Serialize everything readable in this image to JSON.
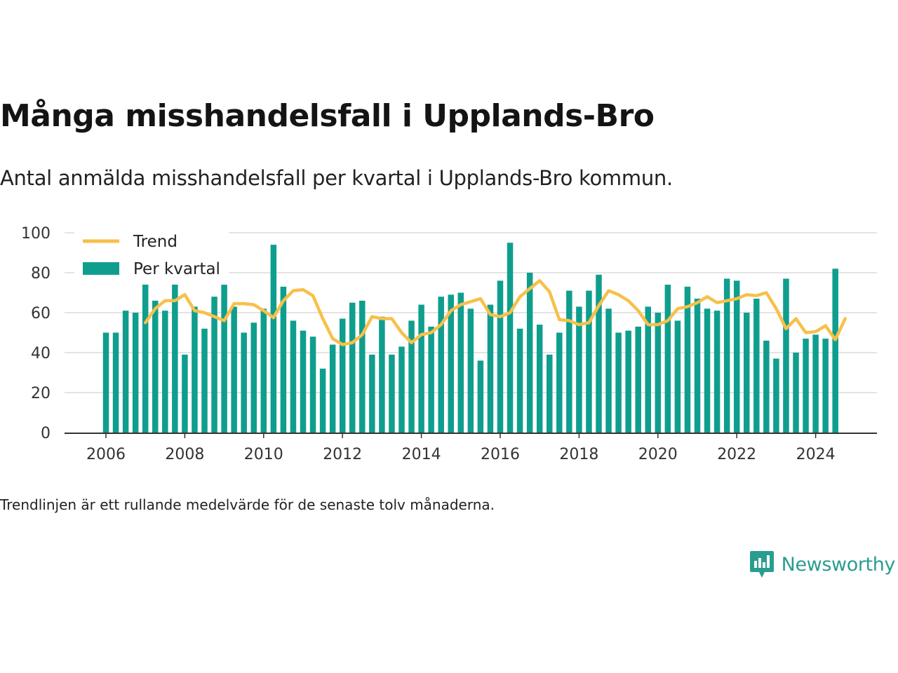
{
  "title": "Många misshandelsfall i Upplands-Bro",
  "subtitle": "Antal anmälda misshandelsfall per kvartal i Upplands-Bro kommun.",
  "note": "Trendlinjen är ett rullande medelvärde för de senaste tolv månaderna.",
  "brand": {
    "name": "Newsworthy",
    "icon": "newsworthy-logo-icon",
    "color": "#2a9d8f"
  },
  "chart_data": {
    "type": "bar",
    "x_start": "2006-Q1",
    "x_ticks": [
      "2006",
      "2008",
      "2010",
      "2012",
      "2014",
      "2016",
      "2018",
      "2020",
      "2022",
      "2024"
    ],
    "y_ticks": [
      "0",
      "20",
      "40",
      "60",
      "80",
      "100"
    ],
    "ylim": [
      0,
      100
    ],
    "grid": true,
    "legend_position": "top-left",
    "colors": {
      "bar": "#0f9e8e",
      "trend": "#f7c04a",
      "grid": "#dcdcdc",
      "axis": "#333333"
    },
    "series": [
      {
        "name": "Per kvartal",
        "type": "bar",
        "values": [
          50,
          50,
          61,
          60,
          76,
          66,
          61,
          75,
          39,
          63,
          52,
          68,
          74,
          63,
          50,
          55,
          62,
          94,
          73,
          56,
          51,
          48,
          32,
          44,
          57,
          65,
          66,
          39,
          58,
          39,
          43,
          56,
          64,
          53,
          68,
          69,
          70,
          62,
          36,
          64,
          76,
          95,
          52,
          80,
          54,
          39,
          50,
          71,
          63,
          71,
          79,
          62,
          50,
          51,
          53,
          63,
          60,
          74,
          56,
          73,
          67,
          62,
          61,
          77,
          76,
          60,
          67,
          46,
          37,
          77,
          40,
          47,
          49,
          47,
          82
        ]
      },
      {
        "name": "Trend",
        "type": "line",
        "x_offset": 4,
        "values": [
          55,
          62,
          66,
          66,
          69,
          61,
          60,
          58,
          56,
          64.5,
          64.5,
          64,
          61,
          57.5,
          66,
          71,
          71.5,
          68.5,
          57,
          47,
          44,
          45,
          49,
          58,
          57,
          57,
          50,
          45,
          49,
          50,
          54,
          61,
          64,
          65.5,
          67,
          59,
          58,
          60,
          68,
          72,
          76,
          70.5,
          56.5,
          56,
          54,
          55,
          63.5,
          71,
          69,
          66,
          61,
          54,
          54,
          56,
          62,
          63,
          65,
          68,
          65,
          66,
          67,
          69,
          68.5,
          70,
          62,
          52,
          57,
          50,
          50.5,
          53.5,
          46.5,
          57
        ]
      }
    ]
  }
}
